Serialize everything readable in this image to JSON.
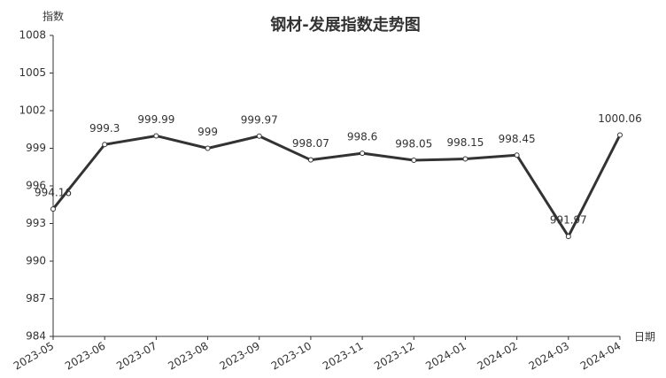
{
  "chart_data": {
    "type": "line",
    "title": "钢材-发展指数走势图",
    "y_label": "指数",
    "x_label": "日期",
    "categories": [
      "2023-05",
      "2023-06",
      "2023-07",
      "2023-08",
      "2023-09",
      "2023-10",
      "2023-11",
      "2023-12",
      "2024-01",
      "2024-02",
      "2024-03",
      "2024-04"
    ],
    "values": [
      994.16,
      999.3,
      999.99,
      999,
      999.97,
      998.07,
      998.6,
      998.05,
      998.15,
      998.45,
      991.97,
      1000.06
    ],
    "color": "#333333",
    "ylim": [
      984,
      1008
    ],
    "yticks": [
      984,
      987,
      990,
      993,
      996,
      999,
      1002,
      1005,
      1008
    ],
    "grid": false
  }
}
